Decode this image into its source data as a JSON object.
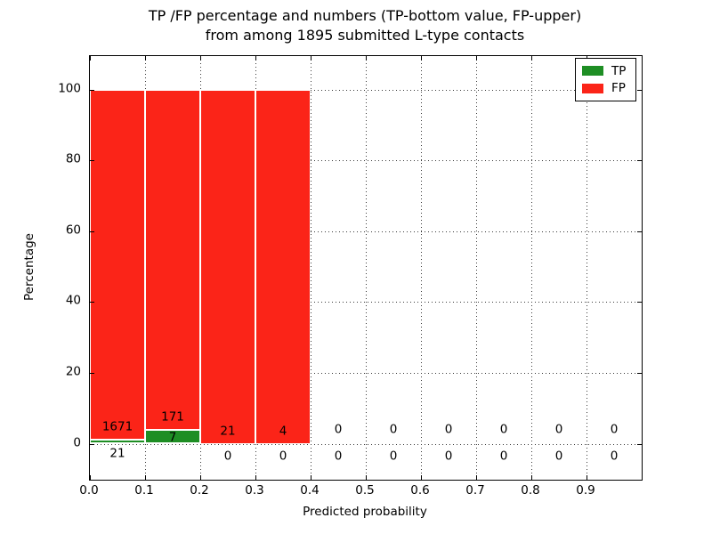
{
  "title": {
    "line1": "TP /FP percentage and numbers (TP-bottom value, FP-upper)",
    "line2": "from among 1895 submitted L-type contacts"
  },
  "legend": {
    "items": [
      {
        "label": "TP",
        "color": "#1e8e24"
      },
      {
        "label": "FP",
        "color": "#fb2418"
      }
    ],
    "position": "upper right"
  },
  "chart_data": {
    "type": "bar",
    "stacked": true,
    "title": "TP /FP percentage and numbers (TP-bottom value, FP-upper) from among 1895 submitted L-type contacts",
    "xlabel": "Predicted probability",
    "ylabel": "Percentage",
    "xlim": [
      0.0,
      1.0
    ],
    "ylim": [
      -10,
      109
    ],
    "xticks": [
      "0.0",
      "0.1",
      "0.2",
      "0.3",
      "0.4",
      "0.5",
      "0.6",
      "0.7",
      "0.8",
      "0.9"
    ],
    "yticks": [
      "0",
      "20",
      "40",
      "60",
      "80",
      "100"
    ],
    "ytick_values": [
      0,
      20,
      40,
      60,
      80,
      100
    ],
    "grid": {
      "visible": true,
      "style": "dotted"
    },
    "total_submitted": 1895,
    "bin_width": 0.1,
    "label_note": "TP count shown at bar bottom, FP count shown above",
    "bins": [
      {
        "x_start": 0.0,
        "x_end": 0.1,
        "tp_count": 21,
        "fp_count": 1671,
        "tp_pct": 1.24,
        "fp_pct": 98.76
      },
      {
        "x_start": 0.1,
        "x_end": 0.2,
        "tp_count": 7,
        "fp_count": 171,
        "tp_pct": 3.93,
        "fp_pct": 96.07
      },
      {
        "x_start": 0.2,
        "x_end": 0.3,
        "tp_count": 0,
        "fp_count": 21,
        "tp_pct": 0.0,
        "fp_pct": 100.0
      },
      {
        "x_start": 0.3,
        "x_end": 0.4,
        "tp_count": 0,
        "fp_count": 4,
        "tp_pct": 0.0,
        "fp_pct": 100.0
      },
      {
        "x_start": 0.4,
        "x_end": 0.5,
        "tp_count": 0,
        "fp_count": 0,
        "tp_pct": 0.0,
        "fp_pct": 0.0
      },
      {
        "x_start": 0.5,
        "x_end": 0.6,
        "tp_count": 0,
        "fp_count": 0,
        "tp_pct": 0.0,
        "fp_pct": 0.0
      },
      {
        "x_start": 0.6,
        "x_end": 0.7,
        "tp_count": 0,
        "fp_count": 0,
        "tp_pct": 0.0,
        "fp_pct": 0.0
      },
      {
        "x_start": 0.7,
        "x_end": 0.8,
        "tp_count": 0,
        "fp_count": 0,
        "tp_pct": 0.0,
        "fp_pct": 0.0
      },
      {
        "x_start": 0.8,
        "x_end": 0.9,
        "tp_count": 0,
        "fp_count": 0,
        "tp_pct": 0.0,
        "fp_pct": 0.0
      },
      {
        "x_start": 0.9,
        "x_end": 1.0,
        "tp_count": 0,
        "fp_count": 0,
        "tp_pct": 0.0,
        "fp_pct": 0.0
      }
    ],
    "series": [
      {
        "name": "TP",
        "color": "#1e8e24",
        "counts": [
          21,
          7,
          0,
          0,
          0,
          0,
          0,
          0,
          0,
          0
        ]
      },
      {
        "name": "FP",
        "color": "#fb2418",
        "counts": [
          1671,
          171,
          21,
          4,
          0,
          0,
          0,
          0,
          0,
          0
        ]
      }
    ],
    "colors": {
      "tp": "#1e8e24",
      "fp": "#fb2418",
      "bar_edge": "#ffffff",
      "grid": "#3a3a3a",
      "axis": "#000000",
      "text": "#000000",
      "background": "#ffffff"
    }
  }
}
